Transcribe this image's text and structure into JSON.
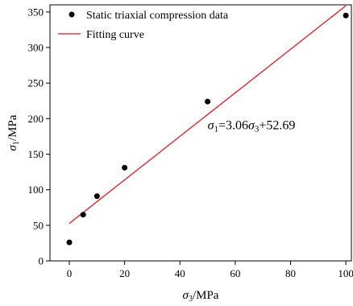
{
  "chart_data": {
    "type": "scatter",
    "title": "",
    "xlabel": {
      "var": "σ",
      "sub": "3",
      "unit": "/MPa"
    },
    "ylabel": {
      "var": "σ",
      "sub": "1",
      "unit": "/MPa"
    },
    "xlim": [
      -7,
      102
    ],
    "ylim": [
      0,
      360
    ],
    "x_ticks": [
      0,
      20,
      40,
      60,
      80,
      100
    ],
    "y_ticks": [
      0,
      50,
      100,
      150,
      200,
      250,
      300,
      350
    ],
    "grid": false,
    "legend_position": "top-left",
    "series": [
      {
        "name": "Static triaxial compression data",
        "kind": "scatter",
        "color": "#000000",
        "x": [
          0,
          5,
          10,
          20,
          50,
          100
        ],
        "y": [
          26,
          65,
          91,
          131,
          224,
          345
        ]
      },
      {
        "name": "Fitting curve",
        "kind": "line",
        "color": "#e8141c",
        "x": [
          0,
          100
        ],
        "y": [
          52.69,
          358.69
        ]
      }
    ],
    "annotation": {
      "lhs_var": "σ",
      "lhs_sub": "1",
      "eq": "=3.06",
      "rhs_var": "σ",
      "rhs_sub": "3",
      "tail": "+52.69",
      "at": [
        50,
        185
      ]
    }
  }
}
